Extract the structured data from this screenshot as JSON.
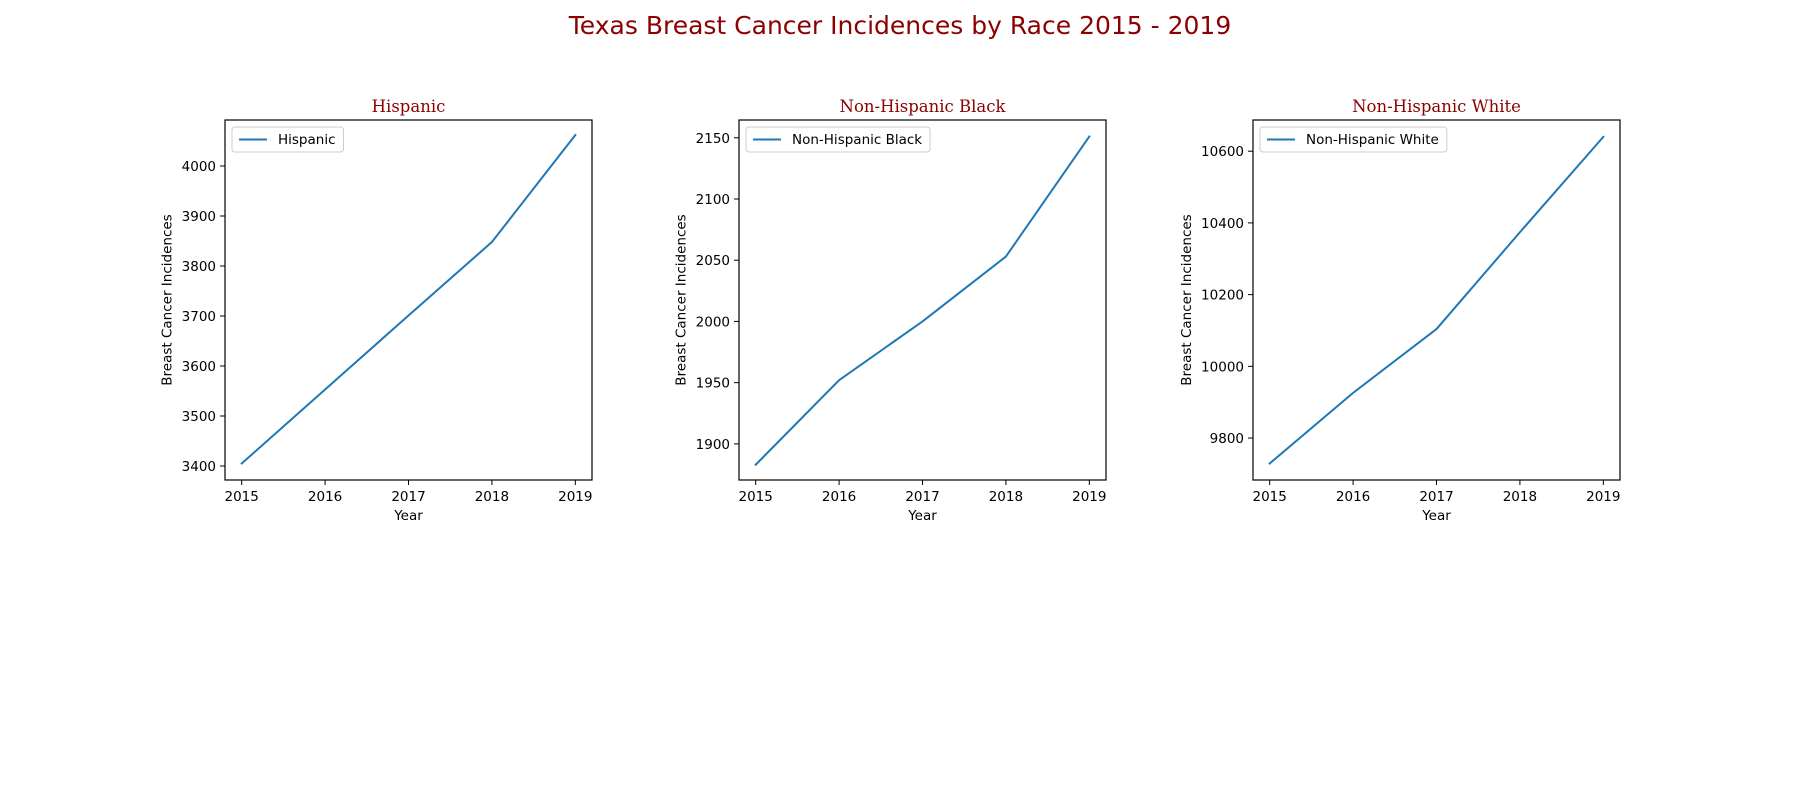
{
  "figure": {
    "title": "Texas Breast Cancer Incidences by Race 2015 - 2019",
    "title_color": "#8b0000",
    "line_color": "#1f77b4"
  },
  "chart_data": [
    {
      "type": "line",
      "title": "Hispanic",
      "xlabel": "Year",
      "ylabel": "Breast Cancer Incidences",
      "x": [
        2015,
        2016,
        2017,
        2018,
        2019
      ],
      "xlim": [
        2014.8,
        2019.2
      ],
      "ylim": [
        3372,
        4092
      ],
      "yticks": [
        3400,
        3500,
        3600,
        3700,
        3800,
        3900,
        4000
      ],
      "legend": "upper left",
      "grid": false,
      "series": [
        {
          "name": "Hispanic",
          "values": [
            3405,
            3553,
            3701,
            3848,
            4062
          ]
        }
      ]
    },
    {
      "type": "line",
      "title": "Non-Hispanic Black",
      "xlabel": "Year",
      "ylabel": "Breast Cancer Incidences",
      "x": [
        2015,
        2016,
        2017,
        2018,
        2019
      ],
      "xlim": [
        2014.8,
        2019.2
      ],
      "ylim": [
        1870.5,
        2164.5
      ],
      "yticks": [
        1900,
        1950,
        2000,
        2050,
        2100,
        2150
      ],
      "legend": "upper left",
      "grid": false,
      "series": [
        {
          "name": "Non-Hispanic Black",
          "values": [
            1883,
            1952,
            2000,
            2053,
            2151
          ]
        }
      ]
    },
    {
      "type": "line",
      "title": "Non-Hispanic White",
      "xlabel": "Year",
      "ylabel": "Breast Cancer Incidences",
      "x": [
        2015,
        2016,
        2017,
        2018,
        2019
      ],
      "xlim": [
        2014.8,
        2019.2
      ],
      "ylim": [
        9683,
        10687
      ],
      "yticks": [
        9800,
        10000,
        10200,
        10400,
        10600
      ],
      "legend": "upper left",
      "grid": false,
      "series": [
        {
          "name": "Non-Hispanic White",
          "values": [
            9729,
            9926,
            10104,
            10374,
            10640
          ]
        }
      ]
    }
  ]
}
